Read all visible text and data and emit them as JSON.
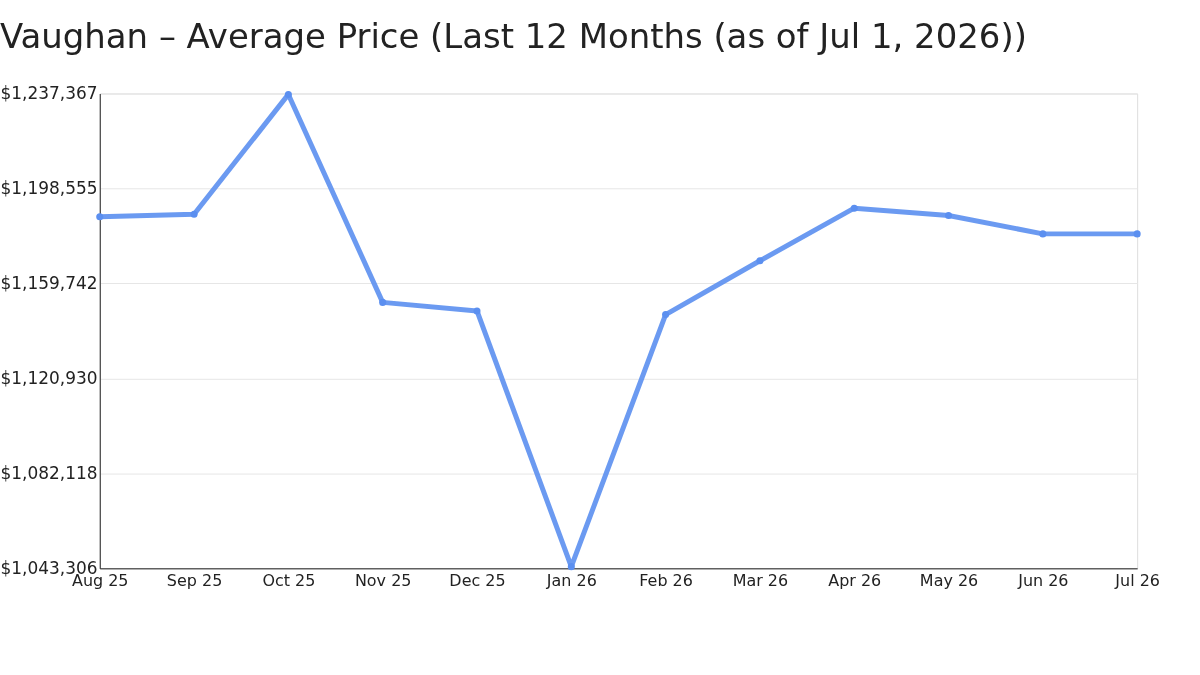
{
  "chart_data": {
    "type": "line",
    "title": "Vaughan – Average Price (Last 12 Months (as of Jul 1, 2026))",
    "categories": [
      "Aug 25",
      "Sep 25",
      "Oct 25",
      "Nov 25",
      "Dec 25",
      "Jan 26",
      "Feb 26",
      "Mar 26",
      "Apr 26",
      "May 26",
      "Jun 26",
      "Jul 26"
    ],
    "series": [
      {
        "color": "#5b8ff0",
        "values": [
          1187000,
          1188000,
          1237000,
          1152000,
          1148500,
          1044000,
          1147000,
          1169000,
          1190500,
          1187500,
          1180000,
          1180000
        ]
      }
    ],
    "ylim": [
      1043306,
      1237367
    ],
    "yticks": [
      {
        "value": 1043306,
        "label": "$1,043,306"
      },
      {
        "value": 1082118,
        "label": "$1,082,118"
      },
      {
        "value": 1120930,
        "label": "$1,120,930"
      },
      {
        "value": 1159742,
        "label": "$1,159,742"
      },
      {
        "value": 1198555,
        "label": "$1,198,555"
      },
      {
        "value": 1237367,
        "label": "$1,237,367"
      }
    ],
    "grid": "y",
    "marker": "circle",
    "line_style": "solid",
    "legend": false
  }
}
